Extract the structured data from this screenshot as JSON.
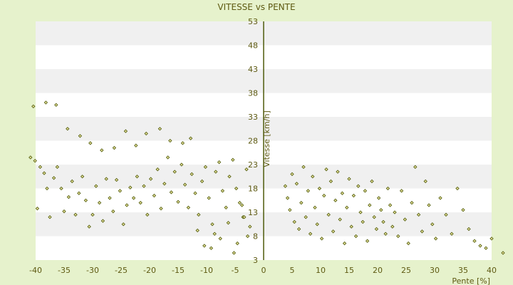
{
  "chart_data": {
    "type": "scatter",
    "title": "VITESSE vs PENTE",
    "xlabel": "Pente [%]",
    "ylabel": "Vitesse [km/h]",
    "xlim": [
      -40,
      40
    ],
    "ylim": [
      3,
      53
    ],
    "x_ticks": [
      -40,
      -35,
      -30,
      -25,
      -20,
      -15,
      -10,
      -5,
      0,
      5,
      10,
      15,
      20,
      25,
      30,
      35,
      40
    ],
    "y_ticks": [
      3,
      8,
      13,
      18,
      23,
      28,
      33,
      38,
      43,
      48,
      53
    ],
    "grid": "horizontal bands",
    "legend": "none",
    "colors": {
      "point_fill": "#e8e09a",
      "point_stroke": "#4e5a0a",
      "band_light": "#ffffff",
      "band_dark": "#f0f0f0",
      "frame_bg": "#e6f2cc",
      "text": "#5e5a12"
    },
    "series": [
      {
        "x": [
          -40.9,
          -40.1,
          -39.7,
          -39.2,
          -38.5,
          -38.0,
          -37.5,
          -36.8,
          -36.2,
          -35.5,
          -35.0,
          -34.2,
          -33.6,
          -33.0,
          -32.4,
          -31.8,
          -31.2,
          -30.6,
          -30.0,
          -29.4,
          -28.8,
          -28.2,
          -27.6,
          -27.0,
          -26.4,
          -25.8,
          -25.2,
          -24.6,
          -24.0,
          -23.4,
          -22.8,
          -22.2,
          -21.6,
          -21.0,
          -20.4,
          -19.8,
          -19.2,
          -18.6,
          -18.0,
          -17.4,
          -16.8,
          -16.2,
          -15.6,
          -15.0,
          -14.4,
          -13.8,
          -13.2,
          -12.6,
          -12.0,
          -11.4,
          -10.8,
          -10.2,
          -9.6,
          -9.0,
          -8.4,
          -7.8,
          -7.2,
          -6.6,
          -6.0,
          -5.4,
          -4.8,
          -4.2,
          -3.6,
          -3.0,
          -2.4,
          -9.2,
          -8.6,
          -10.4,
          -11.6,
          -7.6,
          -6.2,
          -4.6,
          -3.4,
          -2.8,
          -3.8,
          -5.2,
          -12.8,
          -14.2,
          -16.4,
          -18.2,
          -20.6,
          -22.4,
          -24.2,
          -26.2,
          -28.4,
          -30.4,
          -32.2,
          -34.4,
          -36.4,
          -38.2,
          -40.4
        ],
        "y": [
          24.5,
          23.8,
          13.8,
          22.5,
          21.2,
          18.0,
          12.0,
          20.2,
          22.5,
          18.0,
          13.2,
          16.2,
          19.5,
          12.5,
          17.0,
          20.5,
          15.5,
          10.0,
          12.5,
          18.5,
          15.0,
          11.2,
          20.0,
          16.0,
          13.2,
          19.8,
          17.5,
          10.5,
          14.5,
          18.2,
          16.0,
          20.5,
          15.0,
          18.5,
          12.5,
          20.0,
          16.5,
          22.0,
          13.8,
          19.0,
          24.5,
          17.2,
          21.5,
          15.2,
          23.0,
          18.8,
          14.0,
          21.0,
          17.0,
          12.5,
          19.5,
          22.5,
          16.0,
          10.5,
          21.5,
          23.5,
          17.5,
          14.0,
          20.5,
          24.0,
          18.0,
          15.0,
          12.0,
          22.0,
          10.0,
          5.5,
          8.5,
          6.0,
          9.2,
          7.5,
          10.8,
          6.5,
          12.0,
          8.0,
          14.5,
          4.5,
          28.5,
          27.5,
          28.0,
          30.5,
          29.5,
          27.0,
          30.0,
          26.5,
          26.0,
          27.5,
          29.0,
          30.5,
          35.5,
          36.0,
          35.2
        ],
        "note": ""
      },
      {
        "x": [
          3.8,
          4.2,
          4.6,
          5.0,
          5.4,
          5.8,
          6.2,
          6.6,
          7.0,
          7.4,
          7.8,
          8.2,
          8.6,
          9.0,
          9.4,
          9.8,
          10.2,
          10.6,
          11.0,
          11.4,
          11.8,
          12.2,
          12.6,
          13.0,
          13.4,
          13.8,
          14.2,
          14.6,
          15.0,
          15.4,
          15.8,
          16.2,
          16.6,
          17.0,
          17.4,
          17.8,
          18.2,
          18.6,
          19.0,
          19.4,
          19.8,
          20.2,
          20.6,
          21.0,
          21.4,
          21.8,
          22.2,
          22.6,
          23.0,
          23.6,
          24.2,
          24.8,
          25.4,
          26.0,
          26.6,
          27.2,
          27.8,
          28.4,
          29.0,
          29.6,
          30.2,
          31.0,
          32.0,
          33.0,
          34.0,
          35.0,
          36.0,
          37.0,
          38.0,
          39.0,
          40.0,
          42.0
        ],
        "y": [
          18.5,
          16.0,
          13.5,
          21.0,
          11.0,
          19.0,
          9.5,
          15.0,
          22.5,
          12.0,
          17.5,
          8.5,
          20.5,
          14.0,
          10.5,
          18.0,
          7.5,
          16.5,
          22.0,
          12.5,
          19.5,
          9.0,
          15.5,
          21.5,
          11.5,
          17.0,
          6.5,
          14.0,
          20.0,
          10.0,
          16.5,
          8.0,
          18.5,
          13.0,
          11.0,
          17.5,
          7.0,
          14.5,
          19.5,
          12.0,
          9.5,
          16.0,
          13.5,
          11.0,
          8.5,
          18.0,
          14.5,
          10.0,
          13.0,
          8.0,
          17.5,
          11.5,
          6.5,
          15.0,
          22.5,
          12.5,
          9.0,
          19.5,
          14.5,
          10.5,
          7.5,
          16.0,
          12.5,
          8.5,
          18.0,
          13.5,
          9.5,
          7.0,
          6.0,
          5.5,
          7.5,
          4.5
        ]
      }
    ]
  }
}
